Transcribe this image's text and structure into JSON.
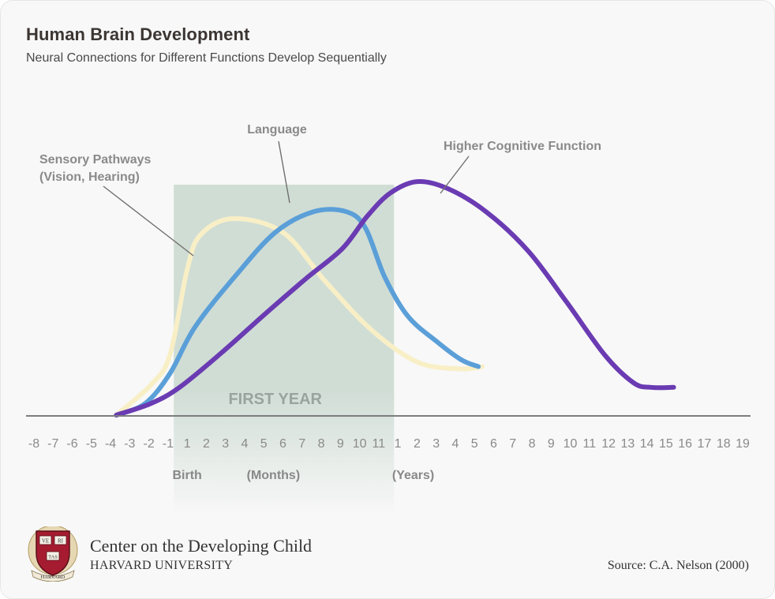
{
  "header": {
    "title": "Human Brain Development",
    "subtitle": "Neural Connections for Different Functions Develop Sequentially"
  },
  "chart_data": {
    "type": "line",
    "title": "Human Brain Development",
    "subtitle": "Neural Connections for Different Functions Develop Sequentially",
    "x_ticks": [
      "-8",
      "-7",
      "-6",
      "-5",
      "-4",
      "-3",
      "-2",
      "-1",
      "1",
      "2",
      "3",
      "4",
      "5",
      "6",
      "7",
      "8",
      "9",
      "10",
      "11",
      "1",
      "2",
      "3",
      "4",
      "5",
      "6",
      "7",
      "8",
      "9",
      "10",
      "11",
      "12",
      "13",
      "14",
      "15",
      "16",
      "17",
      "18",
      "19"
    ],
    "x_sublabels": [
      {
        "text": "Birth",
        "at_tick": 8
      },
      {
        "text": "(Months)",
        "at_tick": 12.5
      },
      {
        "text": "(Years)",
        "at_tick": 19.8
      }
    ],
    "highlight_band": {
      "label": "FIRST YEAR",
      "from_tick": 7.3,
      "to_tick": 18.8
    },
    "ylim": [
      0,
      100
    ],
    "series": [
      {
        "name": "Sensory Pathways",
        "label_lines": [
          "Sensory Pathways",
          "(Vision, Hearing)"
        ],
        "color": "#f8efc6",
        "points": [
          [
            4.3,
            0
          ],
          [
            6.1,
            13
          ],
          [
            7.1,
            26
          ],
          [
            8.0,
            63
          ],
          [
            8.7,
            78
          ],
          [
            10.4,
            85
          ],
          [
            13.0,
            79
          ],
          [
            15.2,
            58
          ],
          [
            17.6,
            37
          ],
          [
            20.0,
            23
          ],
          [
            22.2,
            20
          ],
          [
            23.4,
            21
          ]
        ]
      },
      {
        "name": "Language",
        "label_lines": [
          "Language"
        ],
        "color": "#5b9fd8",
        "points": [
          [
            4.3,
            0
          ],
          [
            5.8,
            5
          ],
          [
            7.1,
            18
          ],
          [
            8.4,
            38
          ],
          [
            10.5,
            60
          ],
          [
            12.6,
            79
          ],
          [
            14.6,
            88
          ],
          [
            16.3,
            88
          ],
          [
            17.3,
            81
          ],
          [
            18.3,
            60
          ],
          [
            19.5,
            43
          ],
          [
            21.0,
            32
          ],
          [
            22.3,
            24
          ],
          [
            23.2,
            21
          ]
        ]
      },
      {
        "name": "Higher Cognitive Function",
        "label_lines": [
          "Higher Cognitive Function"
        ],
        "color": "#6a3bb2",
        "points": [
          [
            4.3,
            0
          ],
          [
            6.1,
            5
          ],
          [
            7.6,
            12
          ],
          [
            9.8,
            27
          ],
          [
            12.1,
            44
          ],
          [
            14.2,
            59
          ],
          [
            16.1,
            72
          ],
          [
            17.4,
            86
          ],
          [
            18.6,
            96
          ],
          [
            20.0,
            101
          ],
          [
            21.6,
            98
          ],
          [
            23.6,
            88
          ],
          [
            25.8,
            71
          ],
          [
            27.8,
            49
          ],
          [
            29.8,
            26
          ],
          [
            31.3,
            14
          ],
          [
            32.2,
            12
          ],
          [
            33.4,
            12
          ]
        ]
      }
    ]
  },
  "footer": {
    "org_name": "Center on the Developing Child",
    "university": "HARVARD UNIVERSITY",
    "source": "Source: C.A. Nelson (2000)",
    "logo_text_top_left": "VE",
    "logo_text_top_right": "RI",
    "logo_text_bottom": "TAS",
    "logo_banner": "HARVARD"
  }
}
